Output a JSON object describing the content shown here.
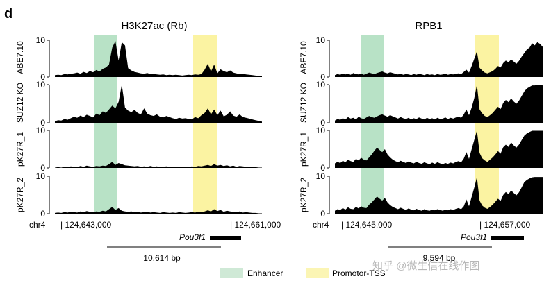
{
  "figure": {
    "panel_letter": "d",
    "legend": {
      "items": [
        {
          "label": "Enhancer",
          "color": "#cfe9d6"
        },
        {
          "label": "Promotor-TSS",
          "color": "#fbf5b4"
        }
      ]
    },
    "watermark": "知乎 @微生信在线作图",
    "colors": {
      "signal": "#000000",
      "enhancer": "#b8e2c6",
      "promoter": "#fbf3a2"
    }
  },
  "chart_data": [
    {
      "type": "area",
      "title": "H3K27ac (Rb)",
      "chromosome": "chr4",
      "coord_start": "| 124,643,000",
      "coord_end": "| 124,661,000",
      "gene": "Pou3f1",
      "scale_bar": "10,614 bp",
      "ylim": [
        0,
        10
      ],
      "yticks": [
        "10",
        "0"
      ],
      "row_labels": [
        "ABE7.10",
        "SUZ12 KO",
        "pK27R_1",
        "pK27R_2"
      ],
      "series": [
        {
          "values": [
            0.5,
            0.6,
            0.5,
            0.8,
            0.7,
            0.9,
            1.0,
            1.2,
            0.9,
            1.4,
            1.1,
            1.6,
            1.3,
            1.9,
            1.5,
            2.2,
            2.6,
            3.4,
            8.0,
            9.8,
            4.5,
            9.5,
            8.6,
            2.4,
            1.8,
            1.4,
            1.2,
            1.0,
            0.9,
            1.1,
            0.8,
            0.9,
            0.7,
            0.6,
            0.7,
            0.5,
            0.6,
            0.5,
            0.6,
            0.5,
            0.4,
            0.5,
            0.6,
            0.5,
            0.7,
            0.6,
            0.8,
            2.0,
            3.6,
            1.5,
            3.4,
            1.0,
            2.1,
            1.6,
            1.3,
            1.8,
            1.2,
            1.0,
            0.8,
            0.9,
            0.7,
            0.6,
            0.5,
            0.4,
            0.3,
            0.2
          ]
        },
        {
          "values": [
            0.4,
            0.7,
            0.6,
            1.0,
            0.8,
            1.2,
            1.6,
            1.3,
            1.9,
            1.5,
            2.1,
            1.8,
            1.4,
            2.4,
            2.0,
            3.0,
            2.6,
            3.5,
            4.5,
            3.8,
            5.5,
            10.0,
            4.0,
            3.2,
            2.8,
            3.4,
            2.6,
            2.2,
            3.8,
            2.4,
            2.0,
            1.8,
            2.2,
            1.6,
            1.4,
            1.8,
            1.5,
            1.2,
            1.0,
            1.3,
            1.1,
            1.2,
            1.0,
            0.9,
            1.5,
            1.2,
            2.0,
            2.6,
            3.8,
            2.2,
            3.5,
            2.0,
            3.2,
            1.7,
            2.1,
            3.0,
            1.9,
            1.6,
            2.2,
            1.5,
            1.3,
            1.1,
            0.9,
            0.7,
            0.5,
            0.3
          ]
        },
        {
          "values": [
            0.1,
            0.2,
            0.1,
            0.3,
            0.2,
            0.4,
            0.3,
            0.2,
            0.5,
            0.3,
            0.6,
            0.4,
            0.3,
            0.5,
            0.4,
            0.6,
            0.5,
            1.0,
            1.6,
            0.8,
            1.3,
            1.0,
            0.7,
            0.6,
            0.5,
            0.4,
            0.5,
            0.3,
            0.4,
            0.3,
            0.5,
            0.3,
            0.4,
            0.2,
            0.3,
            0.4,
            0.2,
            0.3,
            0.2,
            0.3,
            0.2,
            0.3,
            0.2,
            0.4,
            0.3,
            0.5,
            0.4,
            0.6,
            0.8,
            0.5,
            1.0,
            0.6,
            0.8,
            0.5,
            0.7,
            0.4,
            0.6,
            0.3,
            0.5,
            0.4,
            0.3,
            0.2,
            0.3,
            0.2,
            0.1,
            0.1
          ]
        },
        {
          "values": [
            0.2,
            0.3,
            0.2,
            0.4,
            0.3,
            0.5,
            0.4,
            0.3,
            0.6,
            0.4,
            0.7,
            0.5,
            0.4,
            0.6,
            0.5,
            0.8,
            0.6,
            1.2,
            1.8,
            1.0,
            1.5,
            0.8,
            0.6,
            0.5,
            0.6,
            0.4,
            0.5,
            0.3,
            0.4,
            0.5,
            0.3,
            0.4,
            0.3,
            0.2,
            0.4,
            0.3,
            0.2,
            0.3,
            0.2,
            0.4,
            0.3,
            0.2,
            0.3,
            0.4,
            0.3,
            0.5,
            0.4,
            0.6,
            0.9,
            0.6,
            1.2,
            0.7,
            1.0,
            0.5,
            0.8,
            0.6,
            0.5,
            0.4,
            0.6,
            0.3,
            0.4,
            0.3,
            0.2,
            0.2,
            0.1,
            0.1
          ]
        }
      ]
    },
    {
      "type": "area",
      "title": "RPB1",
      "chromosome": "chr4",
      "coord_start": "| 124,645,000",
      "coord_end": "| 124,657,000",
      "gene": "Pou3f1",
      "scale_bar": "9,594 bp",
      "ylim": [
        0,
        10
      ],
      "yticks": [
        "10",
        "0"
      ],
      "row_labels": [],
      "series": [
        {
          "values": [
            0.5,
            0.8,
            0.6,
            1.0,
            0.7,
            0.9,
            0.6,
            1.1,
            0.8,
            0.7,
            1.0,
            0.6,
            0.9,
            1.2,
            1.0,
            0.8,
            1.1,
            1.3,
            1.5,
            1.2,
            1.0,
            1.3,
            1.1,
            0.9,
            0.7,
            0.9,
            0.6,
            0.8,
            0.7,
            0.5,
            0.8,
            0.6,
            0.9,
            0.7,
            0.5,
            0.8,
            0.6,
            0.7,
            0.5,
            0.8,
            0.6,
            0.7,
            0.9,
            0.6,
            0.8,
            0.7,
            0.9,
            1.0,
            0.8,
            1.4,
            2.0,
            1.2,
            3.0,
            5.0,
            7.0,
            2.5,
            1.8,
            1.2,
            1.0,
            1.3,
            1.6,
            2.2,
            3.0,
            2.6,
            3.8,
            4.5,
            4.0,
            4.8,
            4.2,
            3.6,
            4.4,
            5.5,
            6.5,
            7.5,
            8.0,
            9.2,
            8.6,
            9.5,
            9.0,
            8.2
          ]
        },
        {
          "values": [
            0.6,
            1.0,
            0.8,
            1.2,
            0.9,
            1.5,
            1.1,
            1.3,
            0.9,
            1.6,
            1.2,
            1.0,
            1.4,
            1.8,
            1.5,
            1.3,
            1.7,
            2.0,
            2.2,
            1.9,
            1.6,
            2.0,
            1.7,
            1.4,
            1.1,
            1.5,
            1.2,
            1.0,
            1.3,
            0.9,
            1.2,
            1.0,
            1.4,
            1.1,
            0.9,
            1.3,
            1.0,
            1.2,
            0.9,
            1.3,
            1.0,
            1.1,
            1.4,
            1.0,
            1.3,
            1.1,
            1.4,
            1.6,
            1.3,
            2.2,
            3.5,
            2.0,
            4.0,
            6.5,
            10.0,
            3.5,
            2.5,
            1.8,
            1.5,
            2.0,
            2.6,
            3.4,
            4.2,
            3.6,
            5.2,
            6.0,
            5.4,
            6.4,
            5.6,
            5.0,
            5.8,
            7.0,
            8.2,
            9.0,
            9.4,
            9.8,
            9.8,
            9.9,
            9.9,
            9.8
          ]
        },
        {
          "values": [
            1.2,
            1.6,
            1.3,
            1.9,
            1.5,
            2.2,
            1.8,
            1.6,
            2.4,
            2.0,
            2.7,
            2.2,
            2.0,
            2.8,
            3.6,
            4.6,
            5.4,
            4.8,
            4.2,
            5.0,
            3.6,
            2.8,
            2.2,
            1.8,
            1.5,
            1.9,
            1.6,
            1.3,
            1.7,
            1.4,
            1.2,
            1.6,
            1.3,
            1.1,
            1.5,
            1.2,
            1.0,
            1.4,
            1.1,
            1.5,
            1.2,
            1.0,
            1.3,
            1.1,
            1.4,
            1.2,
            1.6,
            1.8,
            1.5,
            2.5,
            4.2,
            2.4,
            5.0,
            7.5,
            10.0,
            4.0,
            2.6,
            2.0,
            1.6,
            2.2,
            2.8,
            3.6,
            4.5,
            3.8,
            5.5,
            6.2,
            5.6,
            6.8,
            6.0,
            5.4,
            6.2,
            7.4,
            8.6,
            9.2,
            9.6,
            9.9,
            9.9,
            9.9,
            9.9,
            9.9
          ]
        },
        {
          "values": [
            0.8,
            1.2,
            1.0,
            1.5,
            1.1,
            1.7,
            1.3,
            1.2,
            1.8,
            1.4,
            2.0,
            1.6,
            1.5,
            2.4,
            3.0,
            3.8,
            4.6,
            4.0,
            3.5,
            4.2,
            3.0,
            2.3,
            1.8,
            1.5,
            1.2,
            1.6,
            1.3,
            1.0,
            1.4,
            1.1,
            0.9,
            1.3,
            1.0,
            0.8,
            1.2,
            0.9,
            0.8,
            1.1,
            0.9,
            1.2,
            1.0,
            0.8,
            1.1,
            0.9,
            1.2,
            1.0,
            1.3,
            1.5,
            1.2,
            2.0,
            3.8,
            2.0,
            4.5,
            7.0,
            9.8,
            3.5,
            2.2,
            1.6,
            1.3,
            1.8,
            2.4,
            3.2,
            4.0,
            3.4,
            5.0,
            5.8,
            5.2,
            6.2,
            5.5,
            4.9,
            5.7,
            7.0,
            8.4,
            9.0,
            9.4,
            9.7,
            9.8,
            9.8,
            9.8,
            9.8
          ]
        }
      ]
    }
  ]
}
